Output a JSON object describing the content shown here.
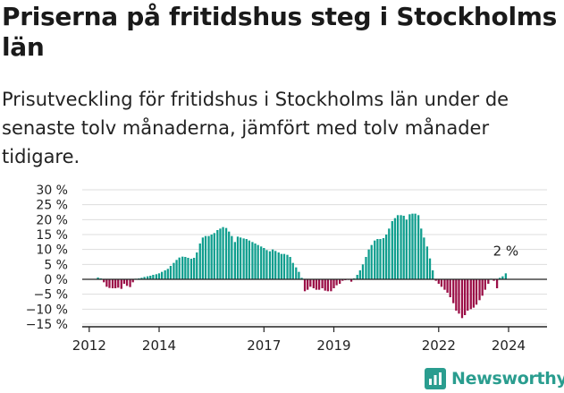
{
  "header": {
    "title": "Priserna på fritidshus steg i Stockholms län",
    "subtitle": "Prisutveckling för fritidshus i Stockholms län under de senaste tolv månaderna, jämfört med tolv månader tidigare."
  },
  "brand": {
    "name": "Newsworthy",
    "icon": "newsworthy-logo-icon",
    "color": "#2a9d8f"
  },
  "colors": {
    "positive": "#0f9e8e",
    "negative": "#9b0f47",
    "axis": "#222222",
    "grid": "#dddddd"
  },
  "chart_data": {
    "type": "bar",
    "unit": "%",
    "ylim": [
      -15,
      30
    ],
    "yticks": [
      30,
      25,
      20,
      15,
      10,
      5,
      0,
      -5,
      -10,
      -15
    ],
    "ytick_labels": [
      "30 %",
      "25 %",
      "20 %",
      "15 %",
      "10 %",
      "5 %",
      "0 %",
      "−5 %",
      "−10 %",
      "−15 %"
    ],
    "xticks": [
      {
        "label": "2012",
        "value": 2012.0
      },
      {
        "label": "2014",
        "value": 2014.0
      },
      {
        "label": "2017",
        "value": 2017.0
      },
      {
        "label": "2019",
        "value": 2019.0
      },
      {
        "label": "2022",
        "value": 2022.0
      },
      {
        "label": "2024",
        "value": 2024.0
      }
    ],
    "x_range": [
      2011.8,
      2025.1
    ],
    "grid": true,
    "last_value_label": "2 %",
    "series": [
      {
        "x": 2012.25,
        "value": 0.6
      },
      {
        "x": 2012.33,
        "value": 0.3
      },
      {
        "x": 2012.42,
        "value": -1.0
      },
      {
        "x": 2012.5,
        "value": -2.5
      },
      {
        "x": 2012.58,
        "value": -2.9
      },
      {
        "x": 2012.67,
        "value": -3.0
      },
      {
        "x": 2012.75,
        "value": -3.0
      },
      {
        "x": 2012.83,
        "value": -2.8
      },
      {
        "x": 2012.92,
        "value": -3.2
      },
      {
        "x": 2013.0,
        "value": -1.5
      },
      {
        "x": 2013.08,
        "value": -2.2
      },
      {
        "x": 2013.17,
        "value": -2.6
      },
      {
        "x": 2013.25,
        "value": -1.0
      },
      {
        "x": 2013.33,
        "value": 0.2
      },
      {
        "x": 2013.42,
        "value": 0.3
      },
      {
        "x": 2013.5,
        "value": 0.5
      },
      {
        "x": 2013.58,
        "value": 0.8
      },
      {
        "x": 2013.67,
        "value": 1.0
      },
      {
        "x": 2013.75,
        "value": 1.2
      },
      {
        "x": 2013.83,
        "value": 1.5
      },
      {
        "x": 2013.92,
        "value": 1.7
      },
      {
        "x": 2014.0,
        "value": 2.0
      },
      {
        "x": 2014.08,
        "value": 2.5
      },
      {
        "x": 2014.17,
        "value": 3.0
      },
      {
        "x": 2014.25,
        "value": 3.5
      },
      {
        "x": 2014.33,
        "value": 4.5
      },
      {
        "x": 2014.42,
        "value": 5.5
      },
      {
        "x": 2014.5,
        "value": 6.5
      },
      {
        "x": 2014.58,
        "value": 7.3
      },
      {
        "x": 2014.67,
        "value": 7.6
      },
      {
        "x": 2014.75,
        "value": 7.5
      },
      {
        "x": 2014.83,
        "value": 7.2
      },
      {
        "x": 2014.92,
        "value": 6.9
      },
      {
        "x": 2015.0,
        "value": 7.2
      },
      {
        "x": 2015.08,
        "value": 9.0
      },
      {
        "x": 2015.17,
        "value": 12.0
      },
      {
        "x": 2015.25,
        "value": 14.0
      },
      {
        "x": 2015.33,
        "value": 14.5
      },
      {
        "x": 2015.42,
        "value": 14.5
      },
      {
        "x": 2015.5,
        "value": 15.0
      },
      {
        "x": 2015.58,
        "value": 15.5
      },
      {
        "x": 2015.67,
        "value": 16.5
      },
      {
        "x": 2015.75,
        "value": 17.0
      },
      {
        "x": 2015.83,
        "value": 17.5
      },
      {
        "x": 2015.92,
        "value": 17.2
      },
      {
        "x": 2016.0,
        "value": 16.0
      },
      {
        "x": 2016.08,
        "value": 14.5
      },
      {
        "x": 2016.17,
        "value": 12.5
      },
      {
        "x": 2016.25,
        "value": 14.3
      },
      {
        "x": 2016.33,
        "value": 14.0
      },
      {
        "x": 2016.42,
        "value": 13.7
      },
      {
        "x": 2016.5,
        "value": 13.5
      },
      {
        "x": 2016.58,
        "value": 13.0
      },
      {
        "x": 2016.67,
        "value": 12.5
      },
      {
        "x": 2016.75,
        "value": 12.0
      },
      {
        "x": 2016.83,
        "value": 11.5
      },
      {
        "x": 2016.92,
        "value": 11.0
      },
      {
        "x": 2017.0,
        "value": 10.5
      },
      {
        "x": 2017.08,
        "value": 9.8
      },
      {
        "x": 2017.17,
        "value": 9.4
      },
      {
        "x": 2017.25,
        "value": 10.0
      },
      {
        "x": 2017.33,
        "value": 9.5
      },
      {
        "x": 2017.42,
        "value": 9.0
      },
      {
        "x": 2017.5,
        "value": 8.5
      },
      {
        "x": 2017.58,
        "value": 8.5
      },
      {
        "x": 2017.67,
        "value": 8.2
      },
      {
        "x": 2017.75,
        "value": 7.5
      },
      {
        "x": 2017.83,
        "value": 5.5
      },
      {
        "x": 2017.92,
        "value": 4.0
      },
      {
        "x": 2018.0,
        "value": 2.5
      },
      {
        "x": 2018.08,
        "value": 0.5
      },
      {
        "x": 2018.17,
        "value": -4.0
      },
      {
        "x": 2018.25,
        "value": -3.5
      },
      {
        "x": 2018.33,
        "value": -2.5
      },
      {
        "x": 2018.42,
        "value": -3.0
      },
      {
        "x": 2018.5,
        "value": -3.5
      },
      {
        "x": 2018.58,
        "value": -3.5
      },
      {
        "x": 2018.67,
        "value": -3.0
      },
      {
        "x": 2018.75,
        "value": -3.8
      },
      {
        "x": 2018.83,
        "value": -4.0
      },
      {
        "x": 2018.92,
        "value": -4.0
      },
      {
        "x": 2019.0,
        "value": -3.0
      },
      {
        "x": 2019.08,
        "value": -2.0
      },
      {
        "x": 2019.17,
        "value": -1.5
      },
      {
        "x": 2019.25,
        "value": -0.5
      },
      {
        "x": 2019.33,
        "value": -0.3
      },
      {
        "x": 2019.42,
        "value": -0.2
      },
      {
        "x": 2019.5,
        "value": -0.8
      },
      {
        "x": 2019.58,
        "value": 0.3
      },
      {
        "x": 2019.67,
        "value": 1.5
      },
      {
        "x": 2019.75,
        "value": 3.0
      },
      {
        "x": 2019.83,
        "value": 5.0
      },
      {
        "x": 2019.92,
        "value": 7.5
      },
      {
        "x": 2020.0,
        "value": 10.0
      },
      {
        "x": 2020.08,
        "value": 11.5
      },
      {
        "x": 2020.17,
        "value": 13.0
      },
      {
        "x": 2020.25,
        "value": 13.5
      },
      {
        "x": 2020.33,
        "value": 13.5
      },
      {
        "x": 2020.42,
        "value": 13.8
      },
      {
        "x": 2020.5,
        "value": 15.0
      },
      {
        "x": 2020.58,
        "value": 17.0
      },
      {
        "x": 2020.67,
        "value": 19.5
      },
      {
        "x": 2020.75,
        "value": 20.5
      },
      {
        "x": 2020.83,
        "value": 21.5
      },
      {
        "x": 2020.92,
        "value": 21.5
      },
      {
        "x": 2021.0,
        "value": 21.3
      },
      {
        "x": 2021.08,
        "value": 20.0
      },
      {
        "x": 2021.17,
        "value": 21.8
      },
      {
        "x": 2021.25,
        "value": 22.0
      },
      {
        "x": 2021.33,
        "value": 22.0
      },
      {
        "x": 2021.42,
        "value": 21.5
      },
      {
        "x": 2021.5,
        "value": 17.0
      },
      {
        "x": 2021.58,
        "value": 14.0
      },
      {
        "x": 2021.67,
        "value": 11.0
      },
      {
        "x": 2021.75,
        "value": 7.0
      },
      {
        "x": 2021.83,
        "value": 3.0
      },
      {
        "x": 2021.92,
        "value": -0.5
      },
      {
        "x": 2022.0,
        "value": -1.5
      },
      {
        "x": 2022.08,
        "value": -2.5
      },
      {
        "x": 2022.17,
        "value": -3.5
      },
      {
        "x": 2022.25,
        "value": -4.5
      },
      {
        "x": 2022.33,
        "value": -6.0
      },
      {
        "x": 2022.42,
        "value": -8.0
      },
      {
        "x": 2022.5,
        "value": -10.5
      },
      {
        "x": 2022.58,
        "value": -11.5
      },
      {
        "x": 2022.67,
        "value": -13.0
      },
      {
        "x": 2022.75,
        "value": -12.0
      },
      {
        "x": 2022.83,
        "value": -10.5
      },
      {
        "x": 2022.92,
        "value": -10.0
      },
      {
        "x": 2023.0,
        "value": -9.5
      },
      {
        "x": 2023.08,
        "value": -8.5
      },
      {
        "x": 2023.17,
        "value": -7.0
      },
      {
        "x": 2023.25,
        "value": -5.5
      },
      {
        "x": 2023.33,
        "value": -3.5
      },
      {
        "x": 2023.42,
        "value": -1.5
      },
      {
        "x": 2023.5,
        "value": 0.2
      },
      {
        "x": 2023.58,
        "value": -0.5
      },
      {
        "x": 2023.67,
        "value": -3.0
      },
      {
        "x": 2023.75,
        "value": 0.5
      },
      {
        "x": 2023.83,
        "value": 1.0
      },
      {
        "x": 2023.92,
        "value": 2.0
      }
    ]
  }
}
